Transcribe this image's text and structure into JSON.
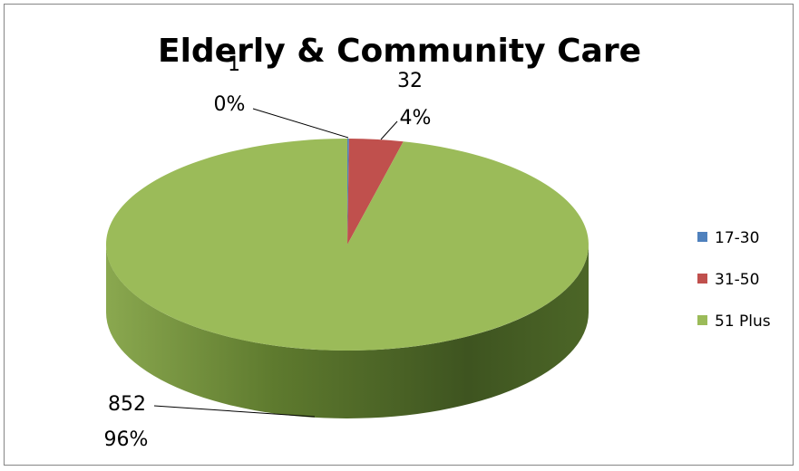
{
  "chart_data": {
    "type": "pie",
    "title": "Elderly & Community Care",
    "slices": [
      {
        "label": "17-30",
        "value": 1,
        "percent": "0%",
        "color": "#4F81BD"
      },
      {
        "label": "31-50",
        "value": 32,
        "percent": "4%",
        "color": "#C0504D"
      },
      {
        "label": "51 Plus",
        "value": 852,
        "percent": "96%",
        "color": "#9BBB59"
      }
    ],
    "legend_position": "right",
    "style": "3d"
  }
}
